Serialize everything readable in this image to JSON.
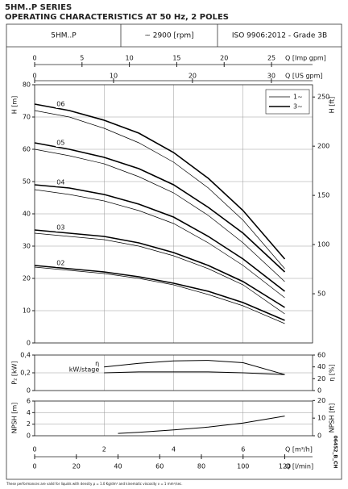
{
  "header": {
    "title": "5HM..P SERIES",
    "subtitle": "OPERATING CHARACTERISTICS AT 50 Hz, 2 POLES",
    "cells": [
      "5HM..P",
      "~ 2900 [rpm]",
      "ISO 9906:2012 - Grade 3B"
    ]
  },
  "chart_data": [
    {
      "type": "line",
      "ylabel": "H [m]",
      "ylim": [
        0,
        80
      ],
      "yticks": [
        0,
        10,
        20,
        30,
        40,
        50,
        60,
        70,
        80
      ],
      "y2label": "H [ft]",
      "y2lim": [
        0,
        262.47
      ],
      "y2ticks": [
        50,
        100,
        150,
        200,
        250
      ],
      "xlim": [
        0,
        8
      ],
      "grid": true,
      "x2_axes": [
        {
          "label": "Q [Imp gpm]",
          "xlim": [
            0,
            29.33
          ],
          "xticks": [
            0,
            5,
            10,
            15,
            20,
            25
          ]
        },
        {
          "label": "Q [US gpm]",
          "xlim": [
            0,
            35.22
          ],
          "xticks": [
            0,
            10,
            20,
            30
          ]
        }
      ],
      "legend": {
        "position": "upper right",
        "entries": [
          {
            "label": "1~",
            "line_width": 0.7
          },
          {
            "label": "3~",
            "line_width": 1.6
          }
        ]
      },
      "x": [
        0,
        1,
        2,
        3,
        4,
        5,
        6,
        7.2
      ],
      "series": [
        {
          "name": "06",
          "color": "#000000",
          "values": [
            74,
            72,
            69,
            65,
            59,
            51,
            41,
            26
          ],
          "values_1": [
            72,
            70,
            66.5,
            62,
            56,
            48,
            38,
            23
          ]
        },
        {
          "name": "05",
          "color": "#000000",
          "values": [
            62,
            60,
            57.5,
            54,
            49,
            42,
            34,
            22
          ],
          "values_1": [
            60,
            58,
            55.5,
            51.5,
            46.5,
            39.5,
            31,
            19
          ]
        },
        {
          "name": "04",
          "color": "#000000",
          "values": [
            49,
            48,
            46,
            43,
            39,
            33,
            26,
            16
          ],
          "values_1": [
            47.5,
            46,
            44,
            41,
            37,
            31,
            24,
            14
          ]
        },
        {
          "name": "03",
          "color": "#000000",
          "values": [
            35,
            34,
            33,
            31,
            28,
            24,
            19,
            11
          ],
          "values_1": [
            34,
            33,
            32,
            30,
            27,
            23,
            18,
            9
          ]
        },
        {
          "name": "02",
          "color": "#000000",
          "values": [
            24,
            23,
            22,
            20.5,
            18.5,
            16,
            12.5,
            7
          ],
          "values_1": [
            23.5,
            22.5,
            21.5,
            20,
            18,
            15,
            11.5,
            6
          ]
        }
      ]
    },
    {
      "type": "line",
      "ylabel": "P₂ [kW]",
      "ylim": [
        0,
        0.4
      ],
      "yticks": [
        0,
        {
          "value": 0.2,
          "label": "0,2"
        },
        {
          "value": 0.4,
          "label": "0,4"
        }
      ],
      "y2label": "η [%]",
      "y2lim": [
        0,
        60
      ],
      "y2ticks": [
        0,
        20,
        40,
        60
      ],
      "xlim": [
        0,
        8
      ],
      "grid": true,
      "x": [
        2,
        3,
        4,
        5,
        6,
        7.2
      ],
      "series": [
        {
          "name": "η",
          "color": "#000000",
          "axis": "y2",
          "values": [
            40,
            46,
            50,
            51,
            47,
            27
          ]
        },
        {
          "name": "kW/stage",
          "color": "#000000",
          "values": [
            0.2,
            0.21,
            0.21,
            0.21,
            0.2,
            0.18
          ]
        }
      ]
    },
    {
      "type": "line",
      "ylabel": "NPSH [m]",
      "ylim": [
        0,
        6
      ],
      "yticks": [
        0,
        2,
        4,
        6
      ],
      "y2label": "NPSH [ft]",
      "y2lim": [
        0,
        19.69
      ],
      "y2ticks": [
        0,
        10,
        20
      ],
      "xlabel": "Q [m³/h]",
      "xlim": [
        0,
        8
      ],
      "xticks": [
        0,
        2,
        4,
        6
      ],
      "grid": true,
      "x2_axes": [
        {
          "label": "Q [l/min]",
          "xlim": [
            0,
            133.33
          ],
          "xticks": [
            0,
            20,
            40,
            60,
            80,
            100,
            120
          ]
        }
      ],
      "x": [
        2.4,
        3,
        4,
        5,
        6,
        7.2
      ],
      "series": [
        {
          "color": "#000000",
          "values": [
            0.4,
            0.6,
            1.0,
            1.5,
            2.2,
            3.4
          ]
        }
      ]
    }
  ],
  "footnote": "These performances are valid for liquids with density ρ = 1.0 Kg/dm³ and kinematic viscosity ν = 1 mm²/sec.",
  "code": "06452_B_CH"
}
